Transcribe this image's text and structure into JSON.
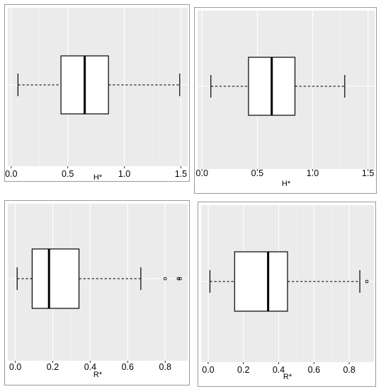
{
  "chart_data": [
    {
      "type": "boxplot",
      "orientation": "horizontal",
      "xlabel": "H*",
      "xlim": [
        -0.03,
        1.56
      ],
      "xticks": [
        0.0,
        0.5,
        1.0,
        1.5
      ],
      "tick_labels": [
        "0.0",
        "0.5",
        "1.0",
        "1.5"
      ],
      "box": {
        "whisker_low": 0.06,
        "q1": 0.44,
        "median": 0.65,
        "q3": 0.86,
        "whisker_high": 1.49
      },
      "outliers": [],
      "grid": true
    },
    {
      "type": "boxplot",
      "orientation": "horizontal",
      "xlabel": "H*",
      "xlim": [
        -0.04,
        1.56
      ],
      "xticks": [
        0.0,
        0.5,
        1.0,
        1.5
      ],
      "tick_labels": [
        "0.0",
        "0.5",
        "1.0",
        "1.5"
      ],
      "box": {
        "whisker_low": 0.08,
        "q1": 0.42,
        "median": 0.63,
        "q3": 0.84,
        "whisker_high": 1.29
      },
      "outliers": [],
      "grid": true
    },
    {
      "type": "boxplot",
      "orientation": "horizontal",
      "xlabel": "R*",
      "xlim": [
        -0.04,
        0.92
      ],
      "xticks": [
        0.0,
        0.2,
        0.4,
        0.6,
        0.8
      ],
      "tick_labels": [
        "0.0",
        "0.2",
        "0.4",
        "0.6",
        "0.8"
      ],
      "box": {
        "whisker_low": 0.01,
        "q1": 0.09,
        "median": 0.18,
        "q3": 0.34,
        "whisker_high": 0.67
      },
      "outliers": [
        0.8,
        0.87,
        0.88
      ],
      "grid": true
    },
    {
      "type": "boxplot",
      "orientation": "horizontal",
      "xlabel": "R*",
      "xlim": [
        -0.04,
        0.94
      ],
      "xticks": [
        0.0,
        0.2,
        0.4,
        0.6,
        0.8
      ],
      "tick_labels": [
        "0.0",
        "0.2",
        "0.4",
        "0.6",
        "0.8"
      ],
      "box": {
        "whisker_low": 0.01,
        "q1": 0.15,
        "median": 0.34,
        "q3": 0.45,
        "whisker_high": 0.86
      },
      "outliers": [
        0.9
      ],
      "grid": true
    }
  ]
}
